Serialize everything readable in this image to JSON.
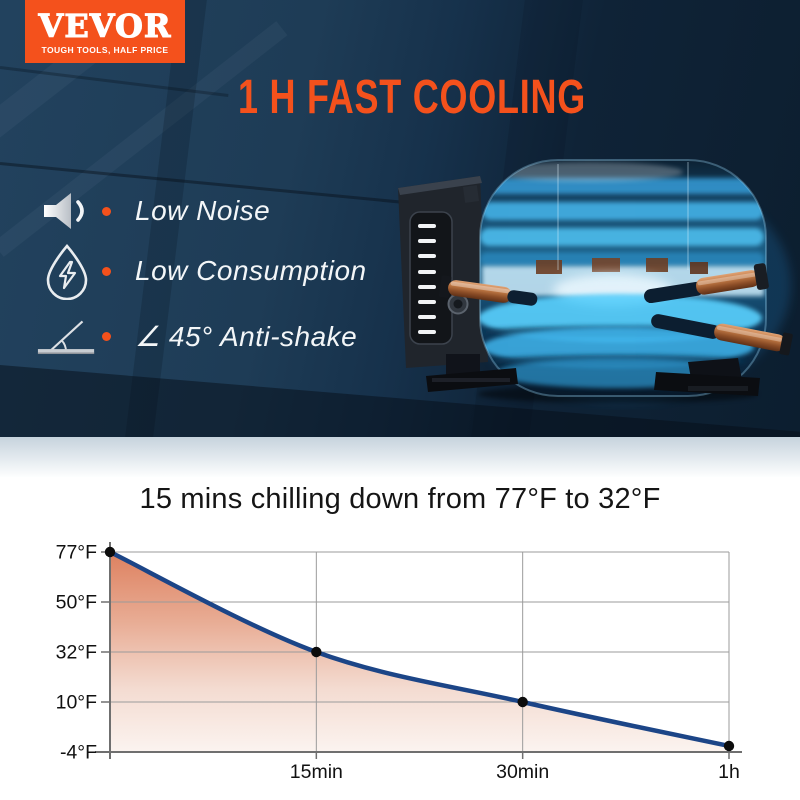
{
  "brand": {
    "name": "VEVOR",
    "tagline": "TOUGH TOOLS, HALF PRICE"
  },
  "hero": {
    "heading": "1 H FAST COOLING",
    "features": [
      {
        "icon": "speaker-icon",
        "label": "Low Noise"
      },
      {
        "icon": "water-drop-lightning-icon",
        "label": "Low Consumption"
      },
      {
        "icon": "angle-45-icon",
        "label": "∠ 45° Anti-shake"
      }
    ]
  },
  "colors": {
    "accent_orange": "#f4511c",
    "hero_navy": "#16314b",
    "glow_blue": "#53c9fa"
  },
  "chart_data": {
    "type": "area",
    "title": "15 mins chilling down from 77°F to 32°F",
    "x_tick_labels": [
      "15min",
      "30min",
      "1h"
    ],
    "y_tick_labels": [
      "77°F",
      "50°F",
      "32°F",
      "10°F",
      "-4°F"
    ],
    "y_tick_values": [
      77,
      50,
      32,
      10,
      -4
    ],
    "series": [
      {
        "name": "temperature",
        "x_labels": [
          "0",
          "15min",
          "30min",
          "1h"
        ],
        "values": [
          77,
          32,
          10,
          -4
        ]
      }
    ],
    "xlabel": "",
    "ylabel": "",
    "grid": true,
    "legend": "none",
    "line_color": "#1c4587",
    "point_color": "#0c0c0c",
    "axis_color": "#6f6f6f",
    "grid_color": "#9b9b9b",
    "area_gradient": [
      "#dc7a57",
      "#e7a88f",
      "#f3d9ce",
      "#fbf3ef"
    ]
  }
}
